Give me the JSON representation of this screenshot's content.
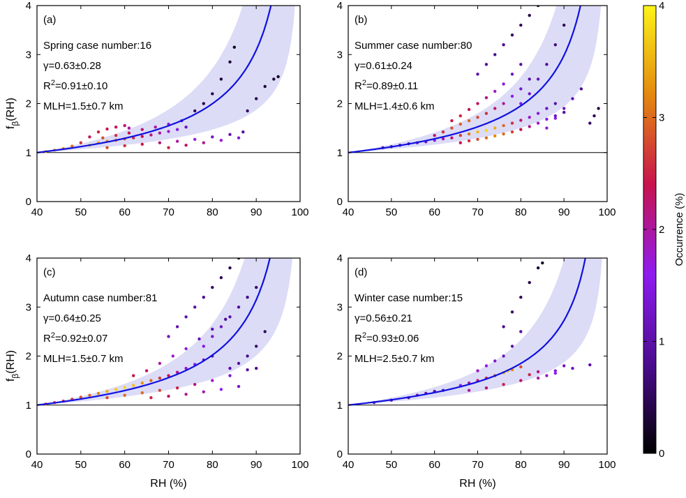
{
  "chart_data": [
    {
      "type": "scatter",
      "panel_label": "(a)",
      "season": "Spring case number:16",
      "gamma": "γ=0.63±0.28",
      "r2_prefix": "R",
      "r2_sup": "2",
      "r2_value": "=0.91±0.10",
      "mlh": "MLH=1.5±0.7 km",
      "xlabel": "",
      "ylabel_main": "f",
      "ylabel_sub": "β",
      "ylabel_tail": "(RH)",
      "xlim": [
        40,
        100
      ],
      "ylim": [
        0,
        4
      ],
      "xticks": [
        "40",
        "50",
        "60",
        "70",
        "80",
        "90",
        "100"
      ],
      "yticks": [
        "0",
        "1",
        "2",
        "3",
        "4"
      ],
      "gamma_value": 0.63,
      "gamma_low": 0.35,
      "gamma_high": 0.91,
      "points": [
        [
          42,
          1.02,
          3.5
        ],
        [
          44,
          1.05,
          3.4
        ],
        [
          46,
          1.08,
          3.2
        ],
        [
          48,
          1.13,
          3.0
        ],
        [
          50,
          1.2,
          2.6
        ],
        [
          52,
          1.32,
          2.4
        ],
        [
          54,
          1.42,
          2.5
        ],
        [
          56,
          1.48,
          2.4
        ],
        [
          58,
          1.52,
          2.3
        ],
        [
          60,
          1.55,
          2.2
        ],
        [
          61,
          1.5,
          2.0
        ],
        [
          52,
          1.15,
          3.6
        ],
        [
          54,
          1.2,
          3.4
        ],
        [
          56,
          1.23,
          3.2
        ],
        [
          58,
          1.25,
          3.0
        ],
        [
          60,
          1.28,
          2.8
        ],
        [
          62,
          1.3,
          2.6
        ],
        [
          64,
          1.33,
          2.4
        ],
        [
          66,
          1.36,
          2.2
        ],
        [
          68,
          1.4,
          2.0
        ],
        [
          70,
          1.43,
          1.8
        ],
        [
          72,
          1.47,
          1.5
        ],
        [
          74,
          1.52,
          1.2
        ],
        [
          55,
          1.3,
          2.8
        ],
        [
          58,
          1.35,
          2.6
        ],
        [
          61,
          1.4,
          2.4
        ],
        [
          64,
          1.47,
          2.2
        ],
        [
          67,
          1.52,
          2.0
        ],
        [
          70,
          1.58,
          1.7
        ],
        [
          73,
          1.65,
          1.3
        ],
        [
          56,
          1.1,
          2.8
        ],
        [
          60,
          1.14,
          2.6
        ],
        [
          64,
          1.17,
          2.4
        ],
        [
          68,
          1.2,
          2.2
        ],
        [
          72,
          1.23,
          2.0
        ],
        [
          76,
          1.27,
          1.7
        ],
        [
          80,
          1.32,
          1.3
        ],
        [
          84,
          1.37,
          1.1
        ],
        [
          87,
          1.42,
          0.9
        ],
        [
          70,
          1.1,
          2.5
        ],
        [
          74,
          1.15,
          2.3
        ],
        [
          78,
          1.2,
          2.1
        ],
        [
          82,
          1.25,
          1.8
        ],
        [
          86,
          1.3,
          1.5
        ],
        [
          76,
          1.85,
          0.5
        ],
        [
          78,
          2.0,
          0.4
        ],
        [
          80,
          2.2,
          0.4
        ],
        [
          82,
          2.5,
          0.3
        ],
        [
          84,
          2.85,
          0.3
        ],
        [
          85,
          3.15,
          0.2
        ],
        [
          88,
          1.85,
          0.5
        ],
        [
          90,
          2.1,
          0.4
        ],
        [
          92,
          2.35,
          0.3
        ],
        [
          94,
          2.5,
          0.3
        ],
        [
          95,
          2.55,
          0.2
        ]
      ]
    },
    {
      "type": "scatter",
      "panel_label": "(b)",
      "season": "Summer case number:80",
      "gamma": "γ=0.61±0.24",
      "r2_prefix": "R",
      "r2_sup": "2",
      "r2_value": "=0.89±0.11",
      "mlh": "MLH=1.4±0.6 km",
      "xlabel": "",
      "ylabel_main": "",
      "ylabel_sub": "",
      "ylabel_tail": "",
      "xlim": [
        40,
        100
      ],
      "ylim": [
        0,
        4
      ],
      "xticks": [
        "40",
        "50",
        "60",
        "70",
        "80",
        "90",
        "100"
      ],
      "yticks": [
        "0",
        "1",
        "2",
        "3",
        "4"
      ],
      "gamma_value": 0.61,
      "gamma_low": 0.37,
      "gamma_high": 0.85,
      "points": [
        [
          48,
          1.1,
          1.0
        ],
        [
          50,
          1.12,
          1.0
        ],
        [
          52,
          1.15,
          1.1
        ],
        [
          54,
          1.18,
          1.1
        ],
        [
          56,
          1.2,
          1.2
        ],
        [
          58,
          1.22,
          1.3
        ],
        [
          60,
          1.25,
          1.6
        ],
        [
          62,
          1.28,
          2.0
        ],
        [
          64,
          1.3,
          2.3
        ],
        [
          66,
          1.35,
          2.7
        ],
        [
          68,
          1.38,
          3.1
        ],
        [
          70,
          1.42,
          3.6
        ],
        [
          72,
          1.45,
          3.8
        ],
        [
          74,
          1.5,
          3.5
        ],
        [
          76,
          1.55,
          3.0
        ],
        [
          78,
          1.6,
          2.6
        ],
        [
          80,
          1.66,
          2.2
        ],
        [
          82,
          1.72,
          1.8
        ],
        [
          84,
          1.8,
          1.5
        ],
        [
          86,
          1.9,
          1.2
        ],
        [
          88,
          2.0,
          1.0
        ],
        [
          60,
          1.35,
          2.2
        ],
        [
          62,
          1.42,
          2.6
        ],
        [
          64,
          1.5,
          2.8
        ],
        [
          66,
          1.58,
          2.9
        ],
        [
          68,
          1.65,
          3.0
        ],
        [
          70,
          1.72,
          2.8
        ],
        [
          72,
          1.8,
          2.6
        ],
        [
          74,
          1.9,
          2.3
        ],
        [
          76,
          2.0,
          2.0
        ],
        [
          78,
          2.15,
          1.6
        ],
        [
          80,
          2.3,
          1.3
        ],
        [
          82,
          2.5,
          1.0
        ],
        [
          64,
          1.65,
          2.4
        ],
        [
          66,
          1.75,
          2.5
        ],
        [
          68,
          1.88,
          2.4
        ],
        [
          70,
          2.0,
          2.3
        ],
        [
          72,
          2.12,
          2.1
        ],
        [
          74,
          2.25,
          1.8
        ],
        [
          76,
          2.4,
          1.5
        ],
        [
          78,
          2.6,
          1.2
        ],
        [
          80,
          2.8,
          0.9
        ],
        [
          66,
          1.2,
          2.4
        ],
        [
          68,
          1.24,
          2.6
        ],
        [
          70,
          1.27,
          2.8
        ],
        [
          72,
          1.3,
          3.0
        ],
        [
          74,
          1.34,
          3.2
        ],
        [
          76,
          1.38,
          3.0
        ],
        [
          78,
          1.42,
          2.7
        ],
        [
          80,
          1.47,
          2.4
        ],
        [
          82,
          1.53,
          2.1
        ],
        [
          84,
          1.6,
          1.8
        ],
        [
          86,
          1.68,
          1.5
        ],
        [
          88,
          1.75,
          1.2
        ],
        [
          90,
          1.82,
          0.9
        ],
        [
          70,
          2.6,
          1.0
        ],
        [
          72,
          2.8,
          0.9
        ],
        [
          74,
          3.0,
          0.8
        ],
        [
          76,
          3.2,
          0.8
        ],
        [
          78,
          3.4,
          0.6
        ],
        [
          80,
          3.6,
          0.5
        ],
        [
          82,
          3.8,
          0.4
        ],
        [
          84,
          4.0,
          0.3
        ],
        [
          80,
          2.0,
          1.5
        ],
        [
          82,
          2.2,
          1.3
        ],
        [
          84,
          2.5,
          1.1
        ],
        [
          86,
          2.8,
          0.9
        ],
        [
          88,
          3.2,
          0.7
        ],
        [
          90,
          3.6,
          0.5
        ],
        [
          86,
          1.5,
          1.8
        ],
        [
          88,
          1.7,
          1.5
        ],
        [
          90,
          1.9,
          1.2
        ],
        [
          92,
          2.1,
          1.0
        ],
        [
          94,
          2.3,
          0.8
        ],
        [
          96,
          1.6,
          0.6
        ],
        [
          97,
          1.75,
          0.5
        ],
        [
          98,
          1.9,
          0.4
        ]
      ]
    },
    {
      "type": "scatter",
      "panel_label": "(c)",
      "season": "Autumn case number:81",
      "gamma": "γ=0.64±0.25",
      "r2_prefix": "R",
      "r2_sup": "2",
      "r2_value": "=0.92±0.07",
      "mlh": "MLH=1.5±0.7 km",
      "xlabel": "RH (%)",
      "ylabel_main": "f",
      "ylabel_sub": "β",
      "ylabel_tail": "(RH)",
      "xlim": [
        40,
        100
      ],
      "ylim": [
        0,
        4
      ],
      "xticks": [
        "40",
        "50",
        "60",
        "70",
        "80",
        "90",
        "100"
      ],
      "yticks": [
        "0",
        "1",
        "2",
        "3",
        "4"
      ],
      "gamma_value": 0.64,
      "gamma_low": 0.39,
      "gamma_high": 0.89,
      "points": [
        [
          42,
          1.02,
          2.8
        ],
        [
          44,
          1.05,
          2.7
        ],
        [
          46,
          1.08,
          2.6
        ],
        [
          48,
          1.12,
          2.7
        ],
        [
          50,
          1.16,
          2.8
        ],
        [
          52,
          1.2,
          3.0
        ],
        [
          54,
          1.24,
          3.2
        ],
        [
          56,
          1.28,
          3.5
        ],
        [
          58,
          1.32,
          3.7
        ],
        [
          60,
          1.36,
          3.8
        ],
        [
          62,
          1.4,
          3.6
        ],
        [
          64,
          1.45,
          3.3
        ],
        [
          66,
          1.5,
          3.0
        ],
        [
          68,
          1.55,
          2.7
        ],
        [
          70,
          1.6,
          2.4
        ],
        [
          72,
          1.67,
          2.1
        ],
        [
          74,
          1.75,
          1.8
        ],
        [
          76,
          1.83,
          1.5
        ],
        [
          78,
          1.92,
          1.2
        ],
        [
          80,
          2.0,
          1.0
        ],
        [
          56,
          1.15,
          2.8
        ],
        [
          60,
          1.2,
          3.0
        ],
        [
          64,
          1.25,
          3.0
        ],
        [
          68,
          1.3,
          2.8
        ],
        [
          72,
          1.35,
          2.5
        ],
        [
          76,
          1.42,
          2.2
        ],
        [
          80,
          1.5,
          1.8
        ],
        [
          84,
          1.6,
          1.4
        ],
        [
          88,
          1.72,
          1.0
        ],
        [
          90,
          1.75,
          0.8
        ],
        [
          62,
          1.6,
          2.4
        ],
        [
          65,
          1.7,
          2.2
        ],
        [
          68,
          1.85,
          2.0
        ],
        [
          71,
          2.0,
          1.8
        ],
        [
          74,
          2.15,
          1.5
        ],
        [
          77,
          2.35,
          1.2
        ],
        [
          80,
          2.55,
          1.0
        ],
        [
          83,
          2.75,
          0.8
        ],
        [
          70,
          2.4,
          1.2
        ],
        [
          72,
          2.6,
          1.1
        ],
        [
          74,
          2.8,
          1.0
        ],
        [
          76,
          3.0,
          0.9
        ],
        [
          78,
          3.2,
          0.8
        ],
        [
          80,
          3.4,
          0.6
        ],
        [
          82,
          3.6,
          0.5
        ],
        [
          84,
          3.8,
          0.4
        ],
        [
          86,
          4.0,
          0.3
        ],
        [
          78,
          2.2,
          1.5
        ],
        [
          80,
          2.4,
          1.3
        ],
        [
          82,
          2.6,
          1.2
        ],
        [
          84,
          2.8,
          1.0
        ],
        [
          86,
          3.0,
          0.9
        ],
        [
          88,
          3.2,
          0.7
        ],
        [
          90,
          3.4,
          0.6
        ],
        [
          66,
          1.15,
          2.5
        ],
        [
          70,
          1.18,
          2.3
        ],
        [
          74,
          1.22,
          2.1
        ],
        [
          78,
          1.27,
          1.9
        ],
        [
          82,
          1.32,
          1.6
        ],
        [
          86,
          1.38,
          1.3
        ],
        [
          84,
          1.75,
          1.0
        ],
        [
          86,
          1.85,
          0.9
        ],
        [
          88,
          2.0,
          0.8
        ],
        [
          90,
          2.2,
          0.6
        ],
        [
          92,
          2.5,
          0.5
        ]
      ]
    },
    {
      "type": "scatter",
      "panel_label": "(d)",
      "season": "Winter case number:15",
      "gamma": "γ=0.56±0.21",
      "r2_prefix": "R",
      "r2_sup": "2",
      "r2_value": "=0.93±0.06",
      "mlh": "MLH=2.5±0.7 km",
      "xlabel": "RH (%)",
      "ylabel_main": "",
      "ylabel_sub": "",
      "ylabel_tail": "",
      "xlim": [
        40,
        100
      ],
      "ylim": [
        0,
        4
      ],
      "xticks": [
        "40",
        "50",
        "60",
        "70",
        "80",
        "90",
        "100"
      ],
      "yticks": [
        "0",
        "1",
        "2",
        "3",
        "4"
      ],
      "gamma_value": 0.56,
      "gamma_low": 0.35,
      "gamma_high": 0.77,
      "points": [
        [
          46,
          1.05,
          1.2
        ],
        [
          50,
          1.1,
          1.0
        ],
        [
          54,
          1.15,
          1.0
        ],
        [
          56,
          1.2,
          1.1
        ],
        [
          58,
          1.24,
          1.1
        ],
        [
          60,
          1.28,
          1.0
        ],
        [
          62,
          1.3,
          1.0
        ],
        [
          66,
          1.4,
          1.6
        ],
        [
          68,
          1.45,
          2.0
        ],
        [
          70,
          1.5,
          2.2
        ],
        [
          72,
          1.55,
          2.5
        ],
        [
          74,
          1.6,
          2.8
        ],
        [
          76,
          1.66,
          3.4
        ],
        [
          77,
          1.7,
          3.6
        ],
        [
          78,
          1.72,
          3.2
        ],
        [
          80,
          1.78,
          2.8
        ],
        [
          82,
          1.62,
          2.5
        ],
        [
          84,
          1.68,
          2.2
        ],
        [
          86,
          1.6,
          1.8
        ],
        [
          88,
          1.7,
          1.5
        ],
        [
          90,
          1.8,
          1.2
        ],
        [
          70,
          1.7,
          1.8
        ],
        [
          72,
          1.8,
          1.6
        ],
        [
          74,
          1.9,
          1.4
        ],
        [
          76,
          2.0,
          1.2
        ],
        [
          78,
          2.2,
          1.0
        ],
        [
          80,
          2.5,
          0.9
        ],
        [
          68,
          1.3,
          2.0
        ],
        [
          72,
          1.35,
          2.2
        ],
        [
          76,
          1.42,
          2.5
        ],
        [
          80,
          1.5,
          2.3
        ],
        [
          84,
          1.55,
          2.0
        ],
        [
          88,
          1.65,
          1.6
        ],
        [
          92,
          1.75,
          1.2
        ],
        [
          96,
          1.82,
          1.0
        ],
        [
          76,
          2.6,
          0.8
        ],
        [
          78,
          2.9,
          0.6
        ],
        [
          80,
          3.2,
          0.5
        ],
        [
          82,
          3.5,
          0.4
        ],
        [
          84,
          3.8,
          0.3
        ],
        [
          85,
          3.9,
          0.2
        ]
      ]
    }
  ],
  "colorbar": {
    "label": "Occurrence (%)",
    "ticks": [
      "0",
      "1",
      "2",
      "3",
      "4"
    ]
  }
}
